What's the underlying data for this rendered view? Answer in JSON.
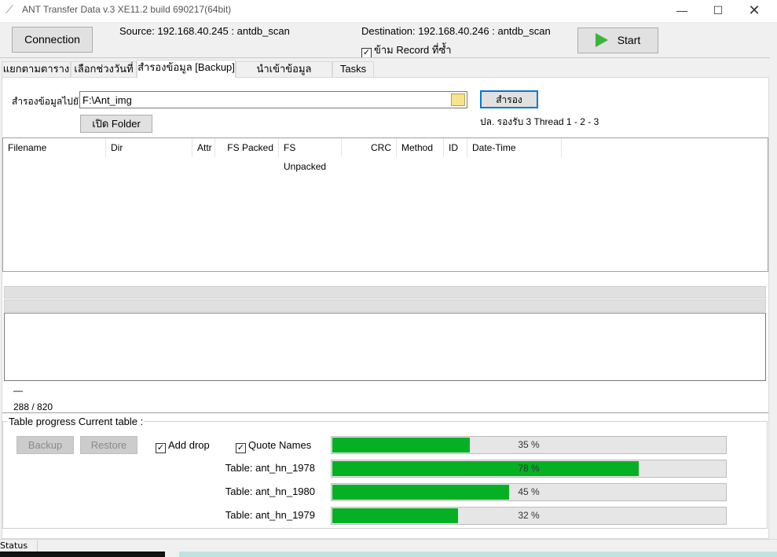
{
  "window": {
    "title": "ANT Transfer Data v.3 XE11.2 build 690217(64bit)"
  },
  "toolbar": {
    "connection": "Connection",
    "source": "Source: 192.168.40.245 : antdb_scan",
    "destination": "Destination: 192.168.40.246 : antdb_scan",
    "skip_label": "ข้าม Record ที่ซ้ำ",
    "skip_checked": true,
    "start": "Start"
  },
  "tabs": [
    {
      "label": "แยกตามตาราง"
    },
    {
      "label": "เลือกช่วงวันที่"
    },
    {
      "label": "สำรองข้อมูล [Backup]",
      "active": true
    },
    {
      "label": "นำเข้าข้อมูล [Restore]"
    },
    {
      "label": "Tasks"
    }
  ],
  "backup": {
    "dest_label": "สำรองข้อมูลไปยัง",
    "path": "F:\\Ant_img",
    "open_folder": "เปิด Folder",
    "backup_btn": "สำรอง",
    "note": "ปล. รองรับ 3 Thread 1 - 2 - 3"
  },
  "columns": [
    "Filename",
    "Dir",
    "Attr",
    "FS Packed",
    "FS Unpacked",
    "CRC",
    "Method",
    "ID",
    "Date-Time"
  ],
  "log": {
    "dash": "—",
    "count": "288 / 820"
  },
  "progress": {
    "group_label": "Table progress Current table :",
    "backup": "Backup",
    "restore": "Restore",
    "add_drop": "Add drop",
    "quote_names": "Quote Names",
    "bars": [
      {
        "label": "",
        "value": 35,
        "text": "35 %"
      },
      {
        "label": "Table: ant_hn_1978",
        "value": 78,
        "text": "78 %"
      },
      {
        "label": "Table: ant_hn_1980",
        "value": 45,
        "text": "45 %"
      },
      {
        "label": "Table: ant_hn_1979",
        "value": 32,
        "text": "32 %"
      }
    ]
  },
  "status": {
    "text": "Status"
  },
  "colors": {
    "progress": "#06b025",
    "accent": "#0078d7"
  }
}
